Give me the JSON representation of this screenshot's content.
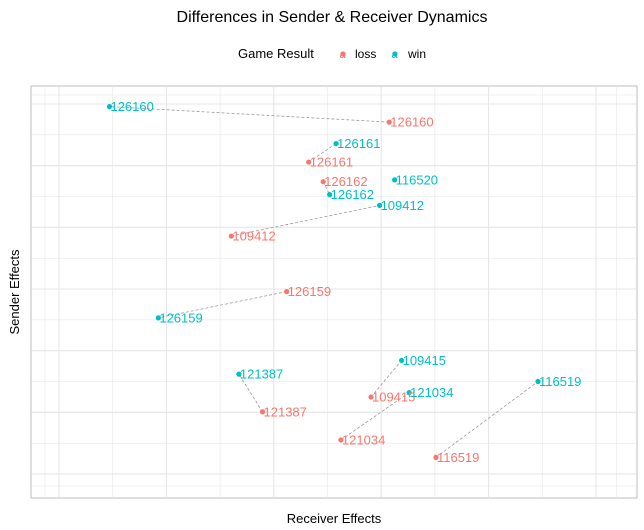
{
  "chart_data": {
    "type": "scatter",
    "title": "Differences in Sender & Receiver Dynamics",
    "xlabel": "Receiver Effects",
    "ylabel": "Sender Effects",
    "xlim": [
      0,
      100
    ],
    "ylim": [
      0,
      100
    ],
    "grid": true,
    "tick_labels_shown": false,
    "legend": {
      "title": "Game Result",
      "position": "top",
      "entries": [
        {
          "name": "loss",
          "color": "#F8766D"
        },
        {
          "name": "win",
          "color": "#00BFC4"
        }
      ]
    },
    "connector": "dashed grey line linking the loss and win point of the same id",
    "series": [
      {
        "name": "loss",
        "color": "#F8766D",
        "points": [
          {
            "label": "126160",
            "x": 61.5,
            "y": 95.1
          },
          {
            "label": "126161",
            "x": 46.5,
            "y": 84.3
          },
          {
            "label": "126162",
            "x": 49.2,
            "y": 79.0
          },
          {
            "label": "109412",
            "x": 32.1,
            "y": 64.3
          },
          {
            "label": "126159",
            "x": 42.4,
            "y": 49.3
          },
          {
            "label": "109415",
            "x": 58.1,
            "y": 20.8
          },
          {
            "label": "121387",
            "x": 37.9,
            "y": 16.8
          },
          {
            "label": "121034",
            "x": 52.5,
            "y": 9.2
          },
          {
            "label": "116519",
            "x": 70.2,
            "y": 4.5
          }
        ]
      },
      {
        "name": "win",
        "color": "#00BFC4",
        "points": [
          {
            "label": "126160",
            "x": 9.4,
            "y": 99.3
          },
          {
            "label": "126161",
            "x": 51.6,
            "y": 89.3
          },
          {
            "label": "116520",
            "x": 62.5,
            "y": 79.5
          },
          {
            "label": "126162",
            "x": 50.4,
            "y": 75.5
          },
          {
            "label": "109412",
            "x": 59.7,
            "y": 72.6
          },
          {
            "label": "126159",
            "x": 18.5,
            "y": 42.2
          },
          {
            "label": "109415",
            "x": 63.8,
            "y": 30.7
          },
          {
            "label": "121387",
            "x": 33.5,
            "y": 27.0
          },
          {
            "label": "121034",
            "x": 65.2,
            "y": 22.0
          },
          {
            "label": "116519",
            "x": 89.2,
            "y": 25.0
          }
        ]
      }
    ],
    "overlapping_label_text": "126162"
  }
}
